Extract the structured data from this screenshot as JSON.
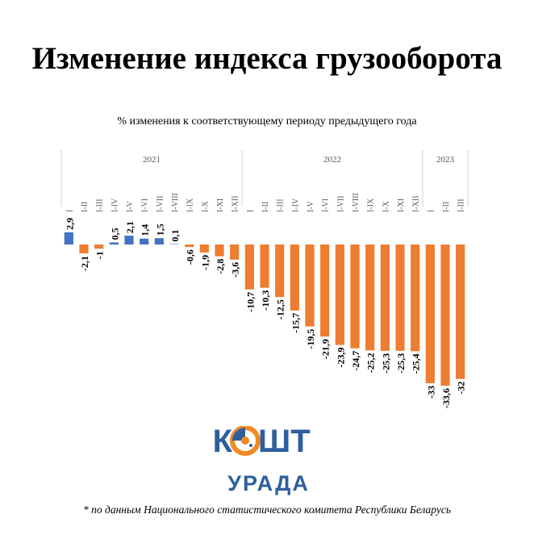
{
  "title": "Изменение индекса грузооборота",
  "subtitle": "% изменения к соответствующему периоду предыдущего года",
  "footnote": "* по данным Национального статистического комитета Республики Беларусь",
  "logo": {
    "text_left": "К",
    "text_right": "ШТ",
    "text_bottom": "УРАДА",
    "color_blue": "#2e5f9e",
    "color_orange": "#f08a24"
  },
  "colors": {
    "positive": "#4472c4",
    "negative": "#ed7d31"
  },
  "chart_data": {
    "type": "bar",
    "groups": [
      {
        "label": "2021",
        "count": 12
      },
      {
        "label": "2022",
        "count": 12
      },
      {
        "label": "2023",
        "count": 3
      }
    ],
    "categories": [
      "I",
      "I-II",
      "I-III",
      "I-IV",
      "I-V",
      "I-VI",
      "I-VII",
      "I-VIII",
      "I-IX",
      "I-X",
      "I-XI",
      "I-XII",
      "I",
      "I-II",
      "I-III",
      "I-IV",
      "I-V",
      "I-VI",
      "I-VII",
      "I-VIII",
      "I-IX",
      "I-X",
      "I-XI",
      "I-XII",
      "I",
      "I-II",
      "I-III"
    ],
    "values": [
      2.9,
      -2.1,
      -1,
      0.5,
      2.1,
      1.4,
      1.5,
      0.1,
      -0.6,
      -1.9,
      -2.8,
      -3.6,
      -10.7,
      -10.3,
      -12.5,
      -15.7,
      -19.5,
      -21.9,
      -23.9,
      -24.7,
      -25.2,
      -25.3,
      -25.3,
      -25.4,
      -33,
      -33.6,
      -32
    ],
    "labels": [
      "2,9",
      "-2,1",
      "-1",
      "0,5",
      "2,1",
      "1,4",
      "1,5",
      "0,1",
      "-0,6",
      "-1,9",
      "-2,8",
      "-3,6",
      "-10,7",
      "-10,3",
      "-12,5",
      "-15,7",
      "-19,5",
      "-21,9",
      "-23,9",
      "-24,7",
      "-25,2",
      "-25,3",
      "-25,3",
      "-25,4",
      "-33",
      "-33,6",
      "-32"
    ],
    "ylim": [
      -33.6,
      2.9
    ]
  }
}
